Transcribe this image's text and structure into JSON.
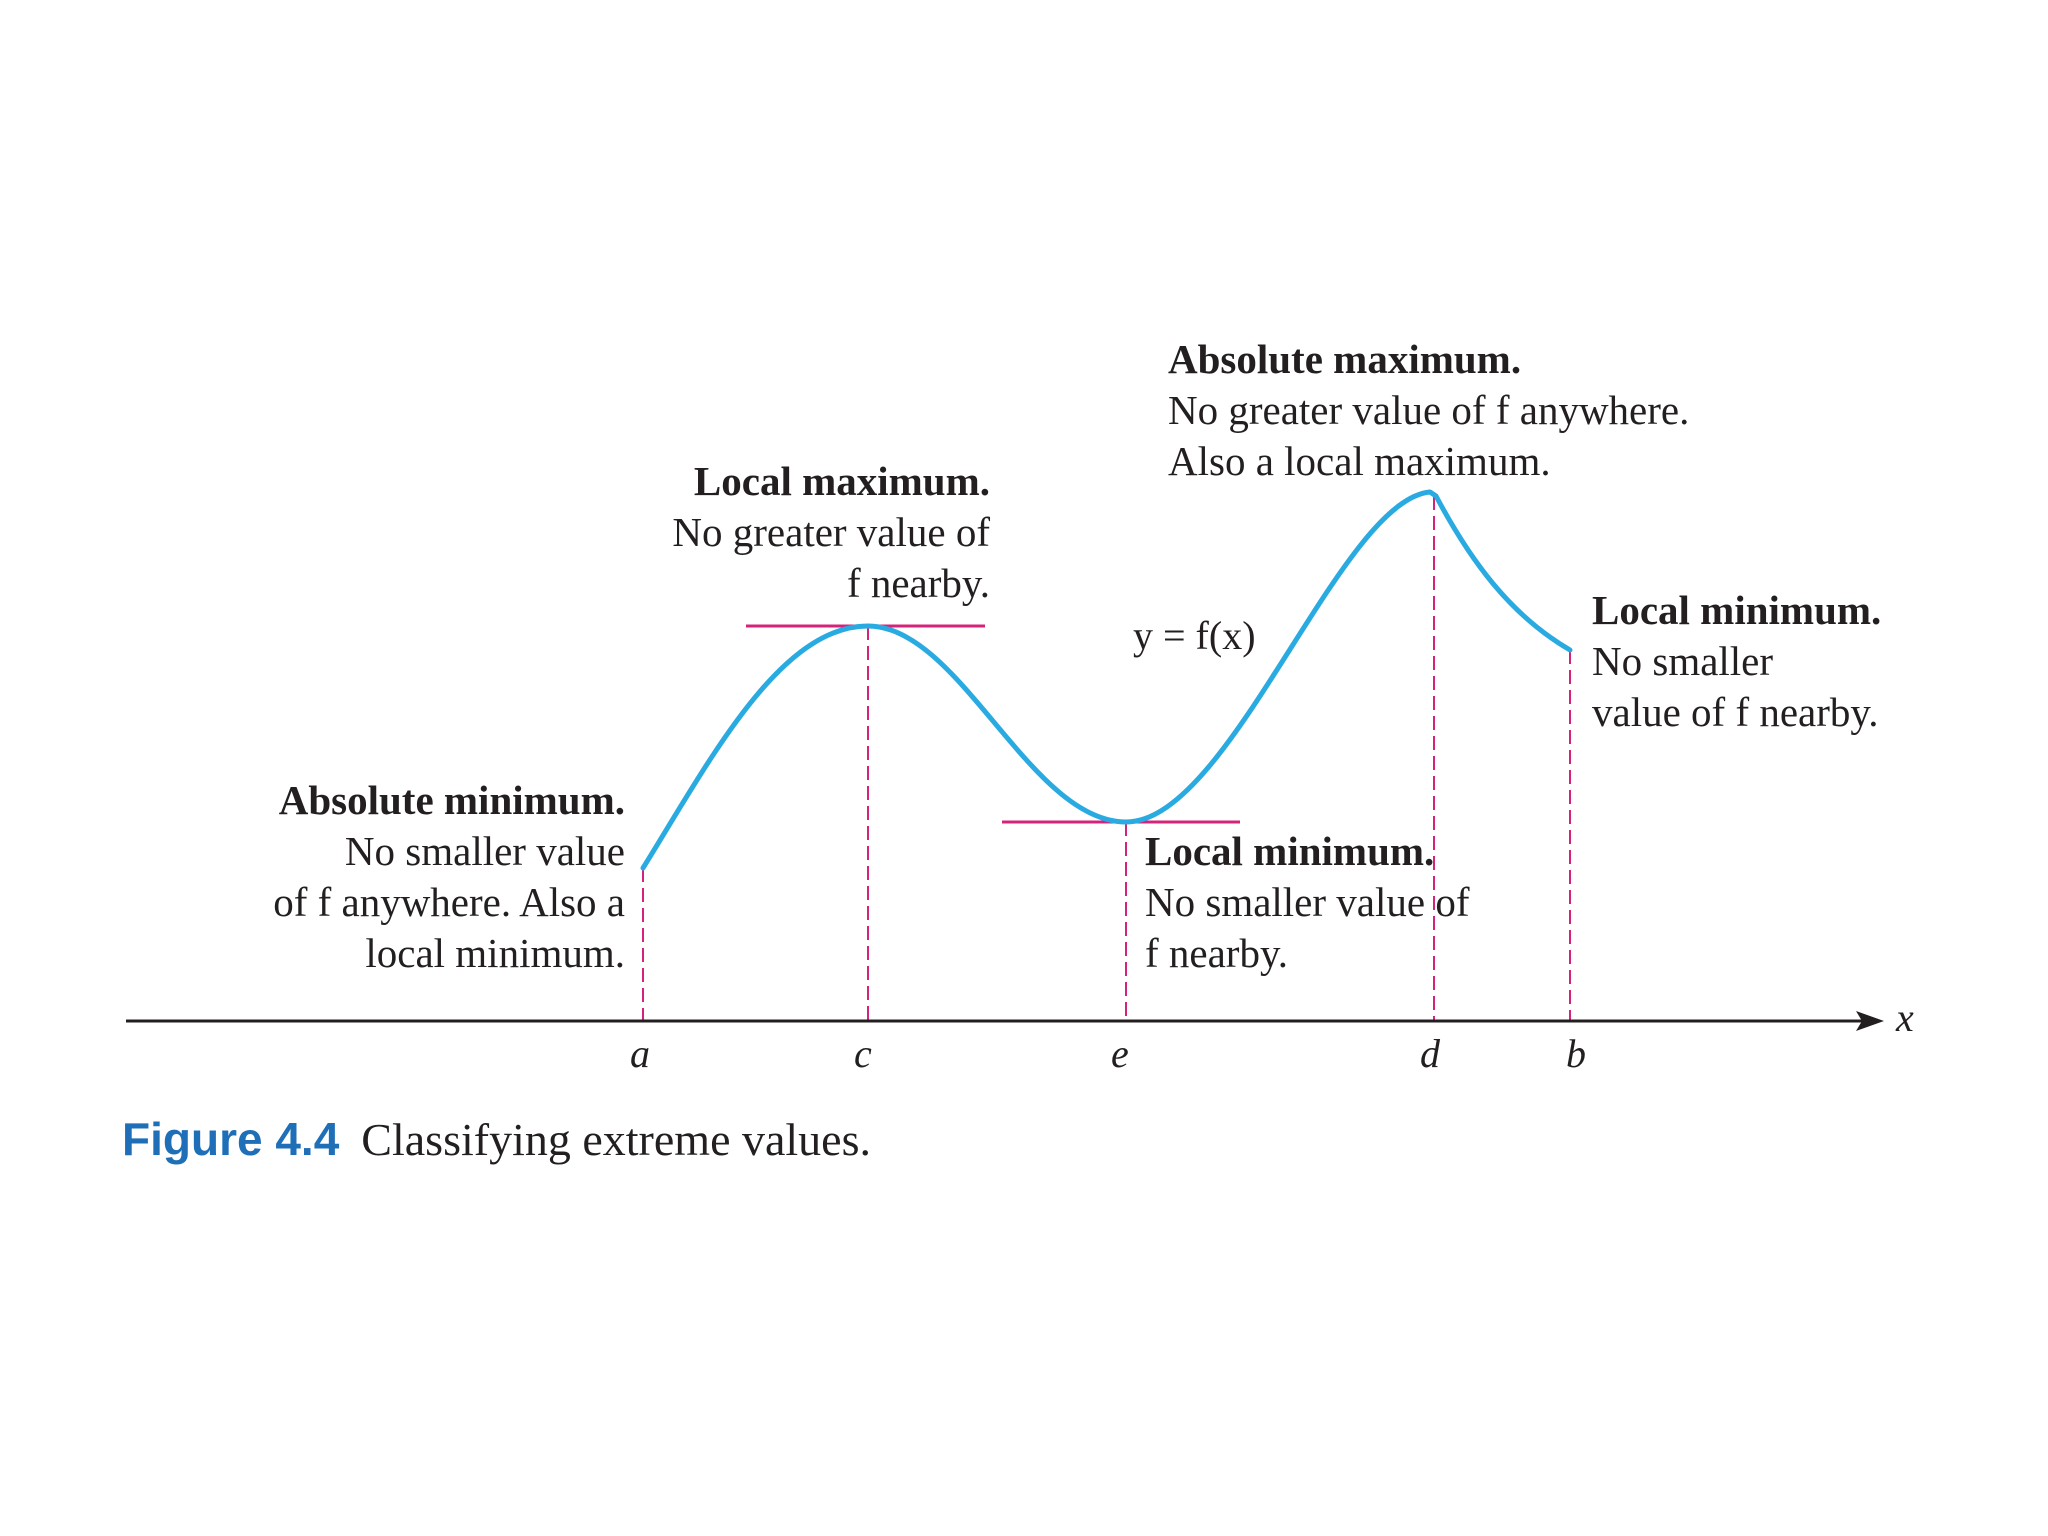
{
  "figure": {
    "number": "Figure 4.4",
    "caption": "Classifying extreme values."
  },
  "curve_label": "y = f(x)",
  "axis": {
    "x_name": "x",
    "ticks": [
      "a",
      "c",
      "e",
      "d",
      "b"
    ]
  },
  "annotations": {
    "absolute_maximum": {
      "heading": "Absolute maximum.",
      "lines": [
        "No greater value of f anywhere.",
        "Also a local maximum."
      ]
    },
    "local_maximum": {
      "heading": "Local maximum.",
      "lines": [
        "No greater value of",
        "f nearby."
      ]
    },
    "local_minimum_right": {
      "heading": "Local minimum.",
      "lines": [
        "No smaller",
        "value of f nearby."
      ]
    },
    "absolute_minimum": {
      "heading": "Absolute minimum.",
      "lines": [
        "No smaller value",
        "of f anywhere. Also a",
        "local minimum."
      ]
    },
    "local_minimum_middle": {
      "heading": "Local minimum.",
      "lines": [
        "No smaller value of",
        "f nearby."
      ]
    }
  },
  "colors": {
    "curve": "#29abe2",
    "tangent": "#d4237a",
    "guide": "#d4237a",
    "axis": "#231f20",
    "caption_number": "#1e6fb7"
  }
}
